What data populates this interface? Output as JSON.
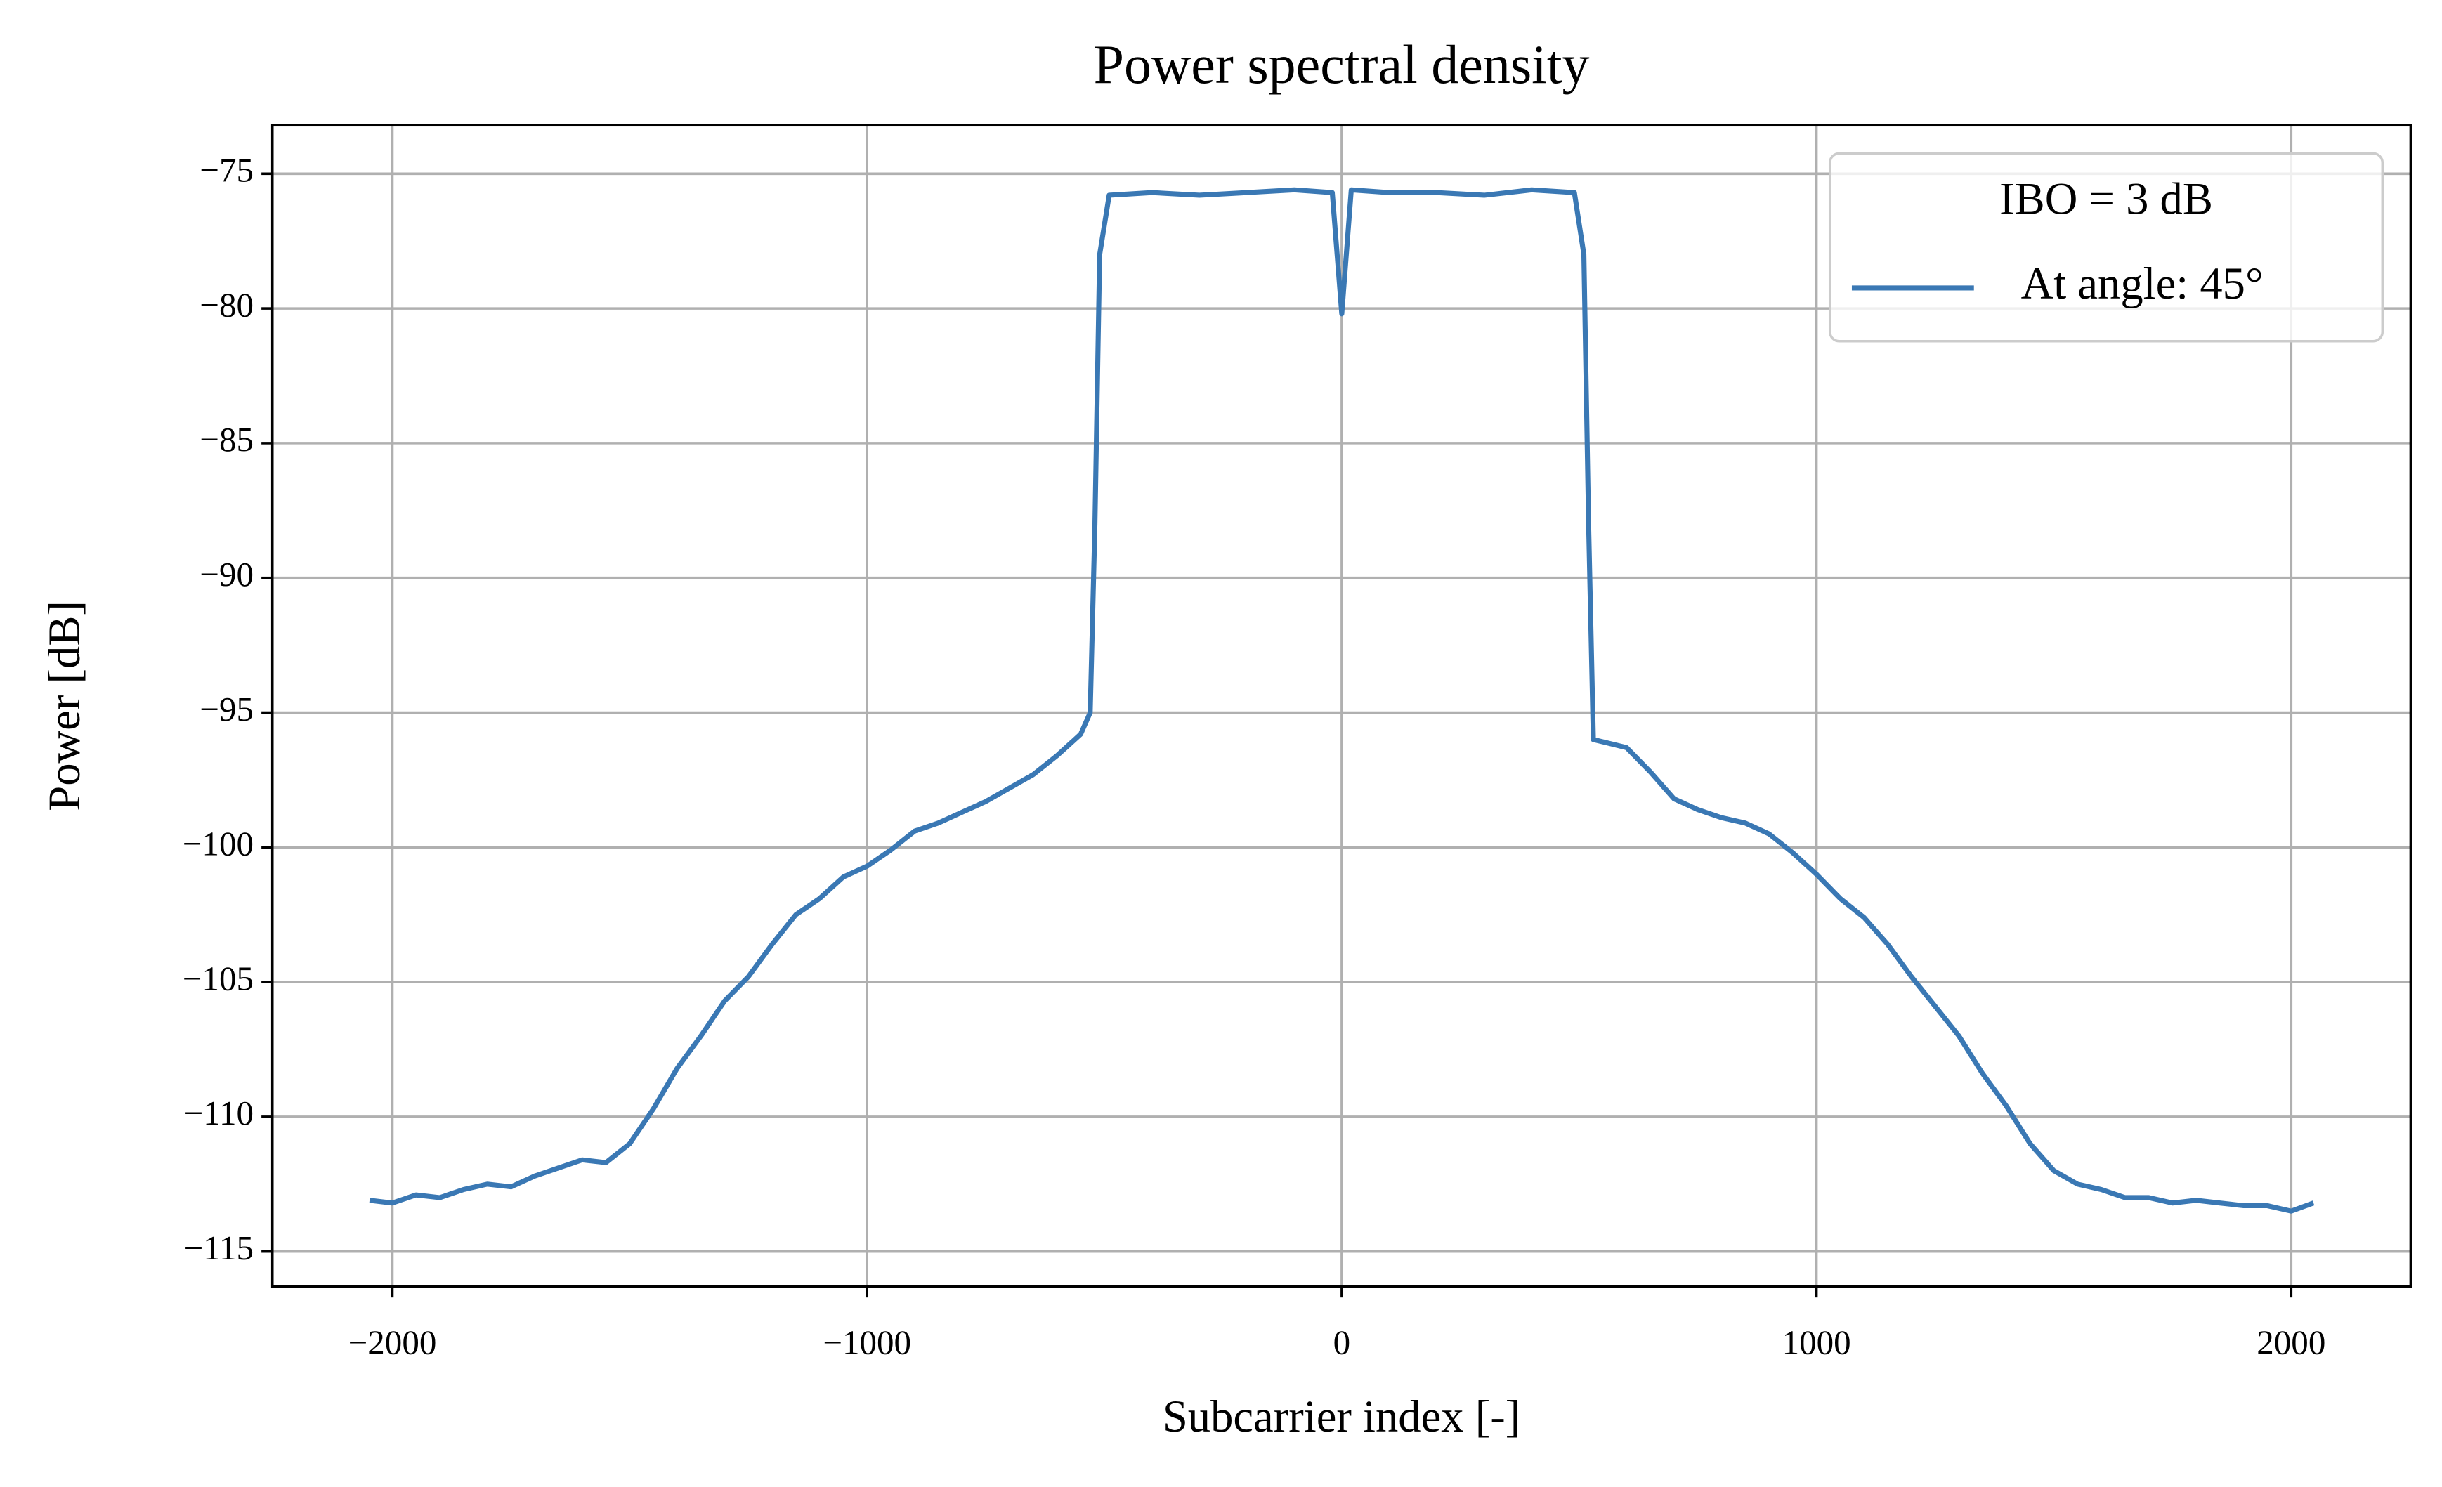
{
  "chart_data": {
    "type": "line",
    "title": "Power spectral density",
    "xlabel": "Subcarrier index [-]",
    "ylabel": "Power [dB]",
    "xlim": [
      -2252.75,
      2251.75
    ],
    "ylim": [
      -116.3,
      -73.2
    ],
    "xticks": [
      {
        "value": -2000,
        "label": "−2000"
      },
      {
        "value": -1000,
        "label": "−1000"
      },
      0,
      1000,
      2000
    ],
    "yticks": [
      {
        "value": -75,
        "label": "−75"
      },
      {
        "value": -80,
        "label": "−80"
      },
      {
        "value": -85,
        "label": "−85"
      },
      {
        "value": -90,
        "label": "−90"
      },
      {
        "value": -95,
        "label": "−95"
      },
      {
        "value": -100,
        "label": "−100"
      },
      {
        "value": -105,
        "label": "−105"
      },
      {
        "value": -110,
        "label": "−110"
      },
      {
        "value": -115,
        "label": "−115"
      }
    ],
    "grid": true,
    "legend_title": "IBO = 3 dB",
    "legend_position": "upper right",
    "x": [
      -2048,
      -2000,
      -1950,
      -1900,
      -1850,
      -1800,
      -1750,
      -1700,
      -1650,
      -1600,
      -1550,
      -1500,
      -1450,
      -1400,
      -1350,
      -1300,
      -1250,
      -1200,
      -1150,
      -1100,
      -1050,
      -1000,
      -950,
      -900,
      -850,
      -800,
      -750,
      -700,
      -650,
      -600,
      -550,
      -530,
      -520,
      -510,
      -490,
      -400,
      -300,
      -200,
      -100,
      -20,
      0,
      20,
      100,
      200,
      300,
      400,
      490,
      510,
      520,
      530,
      600,
      650,
      700,
      750,
      800,
      850,
      900,
      950,
      1000,
      1050,
      1100,
      1150,
      1200,
      1250,
      1300,
      1350,
      1400,
      1450,
      1500,
      1550,
      1600,
      1650,
      1700,
      1750,
      1800,
      1850,
      1900,
      1950,
      2000,
      2047
    ],
    "series": [
      {
        "name": "At angle: 45°",
        "color": "#3a78b4",
        "values": [
          -113.1,
          -113.2,
          -112.9,
          -113.0,
          -112.7,
          -112.5,
          -112.6,
          -112.2,
          -111.9,
          -111.6,
          -111.7,
          -111.0,
          -109.7,
          -108.2,
          -107.0,
          -105.7,
          -104.8,
          -103.6,
          -102.5,
          -101.9,
          -101.1,
          -100.7,
          -100.1,
          -99.4,
          -99.1,
          -98.7,
          -98.3,
          -97.8,
          -97.3,
          -96.6,
          -95.8,
          -95.0,
          -88.0,
          -78.0,
          -75.8,
          -75.7,
          -75.8,
          -75.7,
          -75.6,
          -75.7,
          -80.2,
          -75.6,
          -75.7,
          -75.7,
          -75.8,
          -75.6,
          -75.7,
          -78.0,
          -88.0,
          -96.0,
          -96.3,
          -97.2,
          -98.2,
          -98.6,
          -98.9,
          -99.1,
          -99.5,
          -100.2,
          -101.0,
          -101.9,
          -102.6,
          -103.6,
          -104.8,
          -105.9,
          -107.0,
          -108.4,
          -109.6,
          -111.0,
          -112.0,
          -112.5,
          -112.7,
          -113.0,
          -113.0,
          -113.2,
          -113.1,
          -113.2,
          -113.3,
          -113.3,
          -113.5,
          -113.2
        ]
      }
    ]
  }
}
